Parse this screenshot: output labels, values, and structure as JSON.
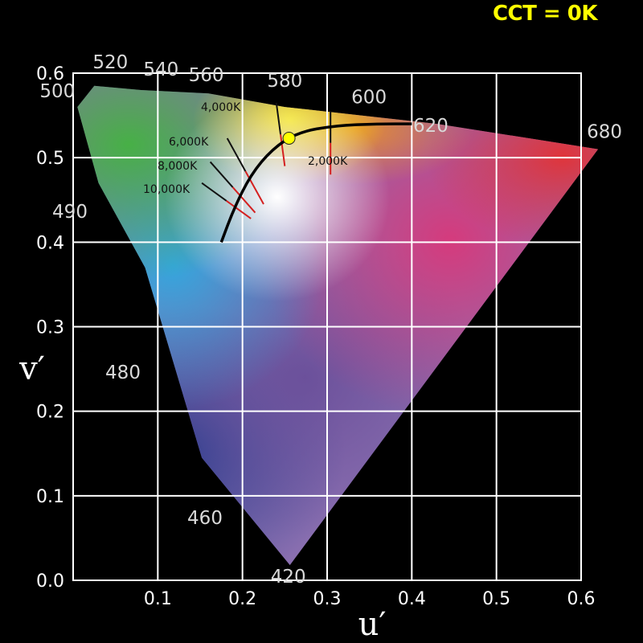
{
  "readout": {
    "cct_text": "CCT = 0K",
    "color": "#ffff00"
  },
  "chart_data": {
    "type": "scatter",
    "title": "",
    "xlabel": "u′",
    "ylabel": "v′",
    "xlim": [
      0,
      0.6
    ],
    "ylim": [
      0,
      0.6
    ],
    "grid": true,
    "background": "#000000",
    "x_ticks": [
      "0.1",
      "0.2",
      "0.3",
      "0.4",
      "0.5",
      "0.6"
    ],
    "y_ticks": [
      "0.0",
      "0.1",
      "0.2",
      "0.3",
      "0.4",
      "0.5",
      "0.6"
    ],
    "spectral_locus": [
      {
        "label": "420",
        "u": 0.256,
        "v": 0.018
      },
      {
        "label": "460",
        "u": 0.152,
        "v": 0.145
      },
      {
        "label": "480",
        "u": 0.085,
        "v": 0.37
      },
      {
        "label": "490",
        "u": 0.03,
        "v": 0.47
      },
      {
        "label": "500",
        "u": 0.005,
        "v": 0.56
      },
      {
        "label": "520",
        "u": 0.025,
        "v": 0.585
      },
      {
        "label": "540",
        "u": 0.08,
        "v": 0.58
      },
      {
        "label": "560",
        "u": 0.16,
        "v": 0.576
      },
      {
        "label": "580",
        "u": 0.25,
        "v": 0.56
      },
      {
        "label": "600",
        "u": 0.34,
        "v": 0.55
      },
      {
        "label": "620",
        "u": 0.43,
        "v": 0.54
      },
      {
        "label": "680",
        "u": 0.62,
        "v": 0.51
      }
    ],
    "planckian_locus": [
      {
        "u": 0.175,
        "v": 0.4
      },
      {
        "u": 0.19,
        "v": 0.44
      },
      {
        "u": 0.21,
        "v": 0.48
      },
      {
        "u": 0.235,
        "v": 0.51
      },
      {
        "u": 0.265,
        "v": 0.53
      },
      {
        "u": 0.31,
        "v": 0.538
      },
      {
        "u": 0.36,
        "v": 0.54
      },
      {
        "u": 0.4,
        "v": 0.54
      }
    ],
    "isotherms": [
      {
        "label": "2,000K",
        "u0": 0.304,
        "v0": 0.48,
        "u1": 0.304,
        "v1": 0.555
      },
      {
        "label": "4,000K",
        "u0": 0.25,
        "v0": 0.49,
        "u1": 0.24,
        "v1": 0.565
      },
      {
        "label": "6,000K",
        "u0": 0.225,
        "v0": 0.445,
        "u1": 0.182,
        "v1": 0.523
      },
      {
        "label": "8,000K",
        "u0": 0.215,
        "v0": 0.435,
        "u1": 0.162,
        "v1": 0.495
      },
      {
        "label": "10,000K",
        "u0": 0.21,
        "v0": 0.428,
        "u1": 0.152,
        "v1": 0.47
      }
    ],
    "marker": {
      "u": 0.255,
      "v": 0.523,
      "color": "#ffff00"
    }
  }
}
